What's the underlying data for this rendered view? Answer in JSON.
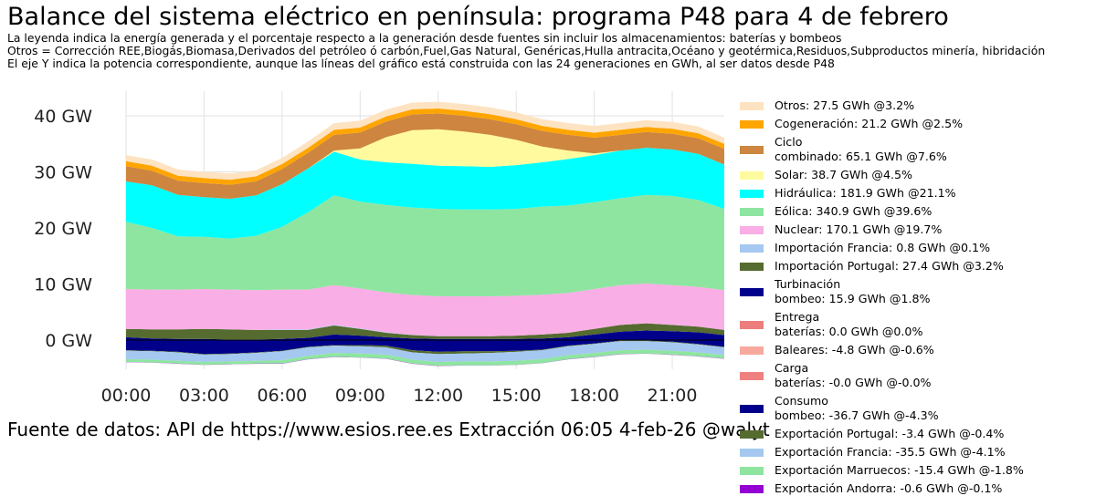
{
  "title": "Balance del sistema eléctrico en península: programa P48 para 4 de febrero",
  "subtitle_lines": [
    "La leyenda indica la energía generada y el porcentaje respecto a la generación desde fuentes sin incluir los almacenamientos: baterías y bombeos",
    "Otros = Corrección REE,Biogás,Biomasa,Derivados del petróleo ó carbón,Fuel,Gas Natural, Genéricas,Hulla antracita,Océano y geotérmica,Residuos,Subproductos minería, hibridación",
    "El eje Y indica la potencia correspondiente, aunque las líneas del gráfico está construida con las 24 generaciones en GWh, al ser datos desde P48"
  ],
  "source_text": "Fuente de datos: API de https://www.esios.ree.es  Extracción 06:05 4-feb-26  @walyt",
  "chart_data": {
    "type": "area",
    "title": "Balance del sistema eléctrico en península: programa P48 para 4 de febrero",
    "x_hours": [
      0,
      1,
      2,
      3,
      4,
      5,
      6,
      7,
      8,
      9,
      10,
      11,
      12,
      13,
      14,
      15,
      16,
      17,
      18,
      19,
      20,
      21,
      22,
      23
    ],
    "xlim": [
      0,
      23
    ],
    "ylim": [
      -5,
      45
    ],
    "x_ticks": [
      0,
      3,
      6,
      9,
      12,
      15,
      18,
      21
    ],
    "x_tick_labels": [
      "00:00",
      "03:00",
      "06:00",
      "09:00",
      "12:00",
      "15:00",
      "18:00",
      "21:00"
    ],
    "y_ticks": [
      0,
      10,
      20,
      30,
      40
    ],
    "y_tick_labels": [
      "0 GW",
      "10 GW",
      "20 GW",
      "30 GW",
      "40 GW"
    ],
    "grid": true,
    "positive_series": [
      {
        "name": "Turbinación bombeo",
        "color": "#00008b",
        "values": [
          0.5,
          0.3,
          0.2,
          0.2,
          0.1,
          0.1,
          0.2,
          0.4,
          1.0,
          0.8,
          0.5,
          0.3,
          0.2,
          0.2,
          0.2,
          0.2,
          0.3,
          0.5,
          1.0,
          1.5,
          1.7,
          1.6,
          1.4,
          0.9
        ]
      },
      {
        "name": "Importación Portugal",
        "color": "#556b2f",
        "values": [
          1.5,
          1.6,
          1.7,
          1.8,
          1.8,
          1.7,
          1.6,
          1.4,
          1.6,
          1.2,
          0.8,
          0.6,
          0.5,
          0.5,
          0.5,
          0.6,
          0.7,
          0.8,
          1.0,
          1.2,
          1.3,
          1.1,
          1.0,
          0.9
        ]
      },
      {
        "name": "Importación Francia",
        "color": "#a4c8f0",
        "values": [
          0,
          0,
          0,
          0,
          0,
          0,
          0.1,
          0.1,
          0.1,
          0.1,
          0.1,
          0.05,
          0,
          0,
          0,
          0,
          0,
          0,
          0,
          0,
          0,
          0,
          0,
          0
        ]
      },
      {
        "name": "Nuclear",
        "color": "#f9aee5",
        "values": [
          7.1,
          7.1,
          7.1,
          7.1,
          7.1,
          7.1,
          7.1,
          7.1,
          7.1,
          7.1,
          7.1,
          7.1,
          7.1,
          7.1,
          7.1,
          7.1,
          7.1,
          7.1,
          7.1,
          7.1,
          7.1,
          7.1,
          7.1,
          7.1
        ]
      },
      {
        "name": "Eólica",
        "color": "#8ee5a0",
        "values": [
          12,
          11,
          9.5,
          9.3,
          9.1,
          9.7,
          11.2,
          13.8,
          16,
          15.5,
          15.6,
          15.6,
          15.6,
          15.5,
          15.5,
          15.5,
          15.7,
          15.6,
          15.5,
          15.5,
          15.8,
          15.9,
          15.5,
          14.5
        ]
      },
      {
        "name": "Hidráulica",
        "color": "#00ffff",
        "values": [
          7.2,
          7.6,
          7.4,
          7.1,
          7.1,
          7.2,
          7.6,
          7.8,
          7.8,
          7.5,
          7.6,
          7.8,
          7.7,
          7.7,
          7.6,
          7.8,
          7.9,
          8.3,
          8.4,
          8.5,
          8.4,
          8.3,
          8.2,
          7.9
        ]
      },
      {
        "name": "Solar",
        "color": "#fffa9e",
        "values": [
          0,
          0,
          0,
          0,
          0,
          0,
          0,
          0,
          0.2,
          2,
          4.5,
          6,
          6.5,
          6.2,
          5.7,
          4.5,
          2.8,
          1.5,
          0.3,
          0,
          0,
          0,
          0,
          0
        ]
      },
      {
        "name": "Ciclo combinado",
        "color": "#cd853f",
        "values": [
          2.7,
          2.6,
          2.5,
          2.5,
          2.5,
          2.5,
          2.7,
          2.8,
          2.8,
          2.8,
          2.8,
          2.8,
          2.8,
          2.8,
          2.8,
          2.8,
          2.8,
          2.8,
          2.8,
          2.8,
          2.8,
          2.8,
          2.8,
          2.8
        ]
      },
      {
        "name": "Cogeneración",
        "color": "#ffa500",
        "values": [
          0.9,
          0.9,
          0.9,
          0.9,
          0.9,
          0.9,
          0.9,
          0.9,
          0.9,
          0.9,
          0.9,
          0.9,
          0.9,
          0.9,
          0.9,
          0.9,
          0.9,
          0.9,
          0.9,
          0.9,
          0.9,
          0.9,
          0.9,
          0.9
        ]
      },
      {
        "name": "Otros",
        "color": "#fde3c1",
        "values": [
          1.1,
          1.1,
          1.1,
          1.1,
          1.1,
          1.1,
          1.1,
          1.1,
          1.2,
          1.2,
          1.2,
          1.2,
          1.2,
          1.2,
          1.2,
          1.2,
          1.2,
          1.2,
          1.2,
          1.2,
          1.2,
          1.2,
          1.2,
          1.1
        ]
      }
    ],
    "negative_series": [
      {
        "name": "Consumo bombeo",
        "color": "#00008b",
        "values": [
          -1.8,
          -1.9,
          -2.1,
          -2.5,
          -2.4,
          -2.2,
          -1.9,
          -1.2,
          -0.9,
          -0.9,
          -1.0,
          -1.8,
          -2.1,
          -2.0,
          -2.0,
          -1.9,
          -1.7,
          -1.0,
          -0.6,
          -0.1,
          -0.1,
          -0.3,
          -0.7,
          -1.2
        ]
      },
      {
        "name": "Exportación Portugal",
        "color": "#556b2f",
        "values": [
          -0.1,
          -0.1,
          -0.1,
          -0.1,
          -0.1,
          -0.1,
          -0.1,
          -0.1,
          -0.1,
          -0.2,
          -0.3,
          -0.4,
          -0.4,
          -0.4,
          -0.3,
          -0.2,
          -0.1,
          -0.1,
          -0.1,
          -0.1,
          -0.1,
          -0.1,
          -0.1,
          -0.1
        ]
      },
      {
        "name": "Exportación Francia",
        "color": "#a4c8f0",
        "values": [
          -1.5,
          -1.5,
          -1.5,
          -1.3,
          -1.3,
          -1.4,
          -1.6,
          -1.5,
          -1.3,
          -1.3,
          -1.3,
          -1.3,
          -1.4,
          -1.4,
          -1.5,
          -1.6,
          -1.6,
          -1.6,
          -1.6,
          -1.6,
          -1.5,
          -1.5,
          -1.4,
          -1.4
        ]
      },
      {
        "name": "Exportación Marruecos",
        "color": "#8ee5a0",
        "values": [
          -0.5,
          -0.5,
          -0.5,
          -0.5,
          -0.5,
          -0.5,
          -0.6,
          -0.6,
          -0.7,
          -0.7,
          -0.7,
          -0.7,
          -0.7,
          -0.7,
          -0.7,
          -0.7,
          -0.7,
          -0.7,
          -0.7,
          -0.7,
          -0.7,
          -0.7,
          -0.7,
          -0.6
        ]
      },
      {
        "name": "Exportación Andorra",
        "color": "#9400d3",
        "values": [
          -0.03,
          -0.03,
          -0.03,
          -0.03,
          -0.03,
          -0.03,
          -0.03,
          -0.03,
          -0.03,
          -0.03,
          -0.03,
          -0.03,
          -0.03,
          -0.03,
          -0.03,
          -0.03,
          -0.03,
          -0.03,
          -0.03,
          -0.03,
          -0.03,
          -0.03,
          -0.03,
          -0.03
        ]
      }
    ],
    "legend": [
      {
        "label": "Otros: 27.5 GWh @3.2%",
        "color": "#fde3c1"
      },
      {
        "label": "Cogeneración: 21.2 GWh @2.5%",
        "color": "#ffa500"
      },
      {
        "label": "Ciclo\ncombinado: 65.1 GWh @7.6%",
        "color": "#cd853f"
      },
      {
        "label": "Solar: 38.7 GWh @4.5%",
        "color": "#fffa9e"
      },
      {
        "label": "Hidráulica: 181.9 GWh @21.1%",
        "color": "#00ffff"
      },
      {
        "label": "Eólica: 340.9 GWh @39.6%",
        "color": "#8ee5a0"
      },
      {
        "label": "Nuclear: 170.1 GWh @19.7%",
        "color": "#f9aee5"
      },
      {
        "label": "Importación Francia: 0.8 GWh @0.1%",
        "color": "#a4c8f0"
      },
      {
        "label": "Importación Portugal: 27.4 GWh @3.2%",
        "color": "#556b2f"
      },
      {
        "label": "Turbinación\nbombeo: 15.9 GWh @1.8%",
        "color": "#00008b"
      },
      {
        "label": "Entrega\nbaterías: 0.0 GWh @0.0%",
        "color": "#ee7d7d"
      },
      {
        "label": "Baleares: -4.8 GWh @-0.6%",
        "color": "#f8a99f"
      },
      {
        "label": "Carga\nbaterías: -0.0 GWh @-0.0%",
        "color": "#f08080"
      },
      {
        "label": "Consumo\nbombeo: -36.7 GWh @-4.3%",
        "color": "#00008b"
      },
      {
        "label": "Exportación Portugal: -3.4 GWh @-0.4%",
        "color": "#556b2f"
      },
      {
        "label": "Exportación Francia: -35.5 GWh @-4.1%",
        "color": "#a4c8f0"
      },
      {
        "label": "Exportación Marruecos: -15.4 GWh @-1.8%",
        "color": "#8ee5a0"
      },
      {
        "label": "Exportación Andorra: -0.6 GWh @-0.1%",
        "color": "#9400d3"
      }
    ],
    "legend_placement": "right"
  }
}
